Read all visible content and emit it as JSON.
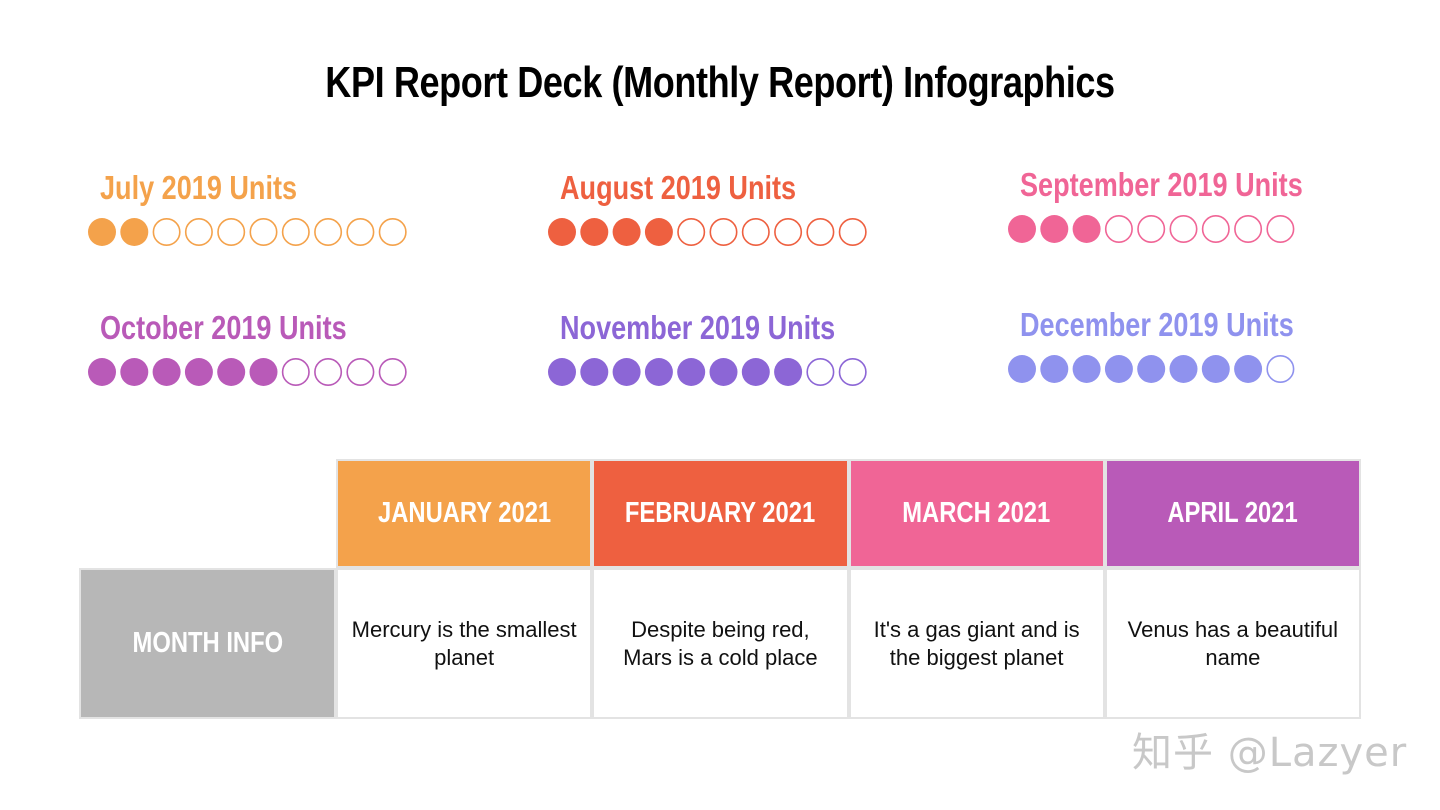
{
  "title": "KPI Report Deck (Monthly Report) Infographics",
  "chart_data": {
    "type": "table",
    "kpis": [
      {
        "label": "July 2019 Units",
        "filled": 2,
        "total": 10,
        "color": "#f4a24b"
      },
      {
        "label": "August 2019 Units",
        "filled": 4,
        "total": 10,
        "color": "#ee6040"
      },
      {
        "label": "September 2019 Units",
        "filled": 3,
        "total": 9,
        "color": "#f06596"
      },
      {
        "label": "October 2019 Units",
        "filled": 6,
        "total": 10,
        "color": "#b95ab8"
      },
      {
        "label": "November 2019 Units",
        "filled": 8,
        "total": 10,
        "color": "#8c66d6"
      },
      {
        "label": "December 2019 Units",
        "filled": 8,
        "total": 9,
        "color": "#8f92ee"
      }
    ],
    "table": {
      "row_header": "MONTH INFO",
      "row_header_color": "#b7b7b7",
      "columns": [
        {
          "header": "JANUARY 2021",
          "color": "#f4a24b",
          "text": "Mercury is the smallest planet"
        },
        {
          "header": "FEBRUARY 2021",
          "color": "#ee6040",
          "text": "Despite being red, Mars is a cold place"
        },
        {
          "header": "MARCH 2021",
          "color": "#f06596",
          "text": "It's a gas giant and is the biggest planet"
        },
        {
          "header": "APRIL 2021",
          "color": "#b95ab8",
          "text": "Venus has a beautiful name"
        }
      ]
    }
  },
  "watermark": "知乎 @Lazyer"
}
